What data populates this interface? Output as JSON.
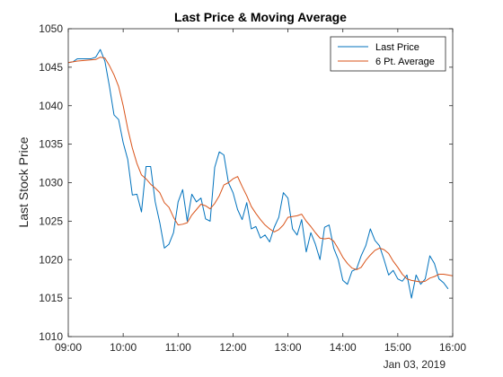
{
  "chart_data": {
    "type": "line",
    "title": "Last Price & Moving Average",
    "xlabel": "",
    "ylabel": "Last Stock Price",
    "date_label": "Jan 03, 2019",
    "x_ticks": [
      "09:00",
      "10:00",
      "11:00",
      "12:00",
      "13:00",
      "14:00",
      "15:00",
      "16:00"
    ],
    "y_ticks": [
      1010,
      1015,
      1020,
      1025,
      1030,
      1035,
      1040,
      1045,
      1050
    ],
    "xlim": [
      "09:00",
      "16:00"
    ],
    "ylim": [
      1010,
      1050
    ],
    "legend_position": "top-right",
    "grid": false,
    "series": [
      {
        "name": "Last Price",
        "color": "#0072BD",
        "points": [
          [
            "09:00",
            1045.6
          ],
          [
            "09:05",
            1045.7
          ],
          [
            "09:10",
            1046.1
          ],
          [
            "09:15",
            1046.1
          ],
          [
            "09:20",
            1046.1
          ],
          [
            "09:25",
            1046.1
          ],
          [
            "09:30",
            1046.3
          ],
          [
            "09:35",
            1047.3
          ],
          [
            "09:40",
            1045.8
          ],
          [
            "09:45",
            1042.5
          ],
          [
            "09:50",
            1038.8
          ],
          [
            "09:55",
            1038.2
          ],
          [
            "10:00",
            1035.2
          ],
          [
            "10:05",
            1033.0
          ],
          [
            "10:10",
            1028.4
          ],
          [
            "10:15",
            1028.5
          ],
          [
            "10:20",
            1026.2
          ],
          [
            "10:25",
            1032.1
          ],
          [
            "10:30",
            1032.1
          ],
          [
            "10:35",
            1027.5
          ],
          [
            "10:40",
            1024.8
          ],
          [
            "10:45",
            1021.5
          ],
          [
            "10:50",
            1022.0
          ],
          [
            "10:55",
            1023.5
          ],
          [
            "11:00",
            1027.5
          ],
          [
            "11:05",
            1029.1
          ],
          [
            "11:10",
            1025.0
          ],
          [
            "11:15",
            1028.5
          ],
          [
            "11:20",
            1027.5
          ],
          [
            "11:25",
            1028.0
          ],
          [
            "11:30",
            1025.3
          ],
          [
            "11:35",
            1025.0
          ],
          [
            "11:40",
            1032.0
          ],
          [
            "11:45",
            1034.0
          ],
          [
            "11:50",
            1033.6
          ],
          [
            "11:55",
            1030.0
          ],
          [
            "12:00",
            1028.7
          ],
          [
            "12:05",
            1026.5
          ],
          [
            "12:10",
            1025.2
          ],
          [
            "12:15",
            1027.4
          ],
          [
            "12:20",
            1024.0
          ],
          [
            "12:25",
            1024.3
          ],
          [
            "12:30",
            1022.8
          ],
          [
            "12:35",
            1023.2
          ],
          [
            "12:40",
            1022.3
          ],
          [
            "12:45",
            1024.2
          ],
          [
            "12:50",
            1025.5
          ],
          [
            "12:55",
            1028.7
          ],
          [
            "13:00",
            1028.0
          ],
          [
            "13:05",
            1024.0
          ],
          [
            "13:10",
            1023.2
          ],
          [
            "13:15",
            1025.2
          ],
          [
            "13:20",
            1021.0
          ],
          [
            "13:25",
            1023.5
          ],
          [
            "13:30",
            1022.0
          ],
          [
            "13:35",
            1020.0
          ],
          [
            "13:40",
            1024.2
          ],
          [
            "13:45",
            1024.5
          ],
          [
            "13:50",
            1021.5
          ],
          [
            "13:55",
            1020.0
          ],
          [
            "14:00",
            1017.3
          ],
          [
            "14:05",
            1016.8
          ],
          [
            "14:10",
            1018.5
          ],
          [
            "14:15",
            1018.8
          ],
          [
            "14:20",
            1020.5
          ],
          [
            "14:25",
            1021.8
          ],
          [
            "14:30",
            1024.0
          ],
          [
            "14:35",
            1022.5
          ],
          [
            "14:40",
            1021.8
          ],
          [
            "14:45",
            1020.0
          ],
          [
            "14:50",
            1018.0
          ],
          [
            "14:55",
            1018.6
          ],
          [
            "15:00",
            1017.5
          ],
          [
            "15:05",
            1017.2
          ],
          [
            "15:10",
            1018.0
          ],
          [
            "15:15",
            1015.0
          ],
          [
            "15:20",
            1018.0
          ],
          [
            "15:25",
            1016.8
          ],
          [
            "15:30",
            1017.5
          ],
          [
            "15:35",
            1020.5
          ],
          [
            "15:40",
            1019.5
          ],
          [
            "15:45",
            1017.5
          ],
          [
            "15:50",
            1017.0
          ],
          [
            "15:55",
            1016.2
          ]
        ]
      },
      {
        "name": "6 Pt. Average",
        "color": "#D95319",
        "points": [
          [
            "09:00",
            1045.6
          ],
          [
            "09:10",
            1045.8
          ],
          [
            "09:20",
            1045.9
          ],
          [
            "09:30",
            1046.0
          ],
          [
            "09:35",
            1046.3
          ],
          [
            "09:40",
            1046.2
          ],
          [
            "09:45",
            1045.2
          ],
          [
            "09:50",
            1044.0
          ],
          [
            "09:55",
            1042.5
          ],
          [
            "10:00",
            1040.0
          ],
          [
            "10:05",
            1037.0
          ],
          [
            "10:10",
            1034.5
          ],
          [
            "10:15",
            1032.5
          ],
          [
            "10:20",
            1031.0
          ],
          [
            "10:25",
            1030.5
          ],
          [
            "10:30",
            1029.8
          ],
          [
            "10:35",
            1029.3
          ],
          [
            "10:40",
            1028.7
          ],
          [
            "10:45",
            1027.4
          ],
          [
            "10:50",
            1026.8
          ],
          [
            "10:55",
            1025.5
          ],
          [
            "11:00",
            1024.5
          ],
          [
            "11:05",
            1024.6
          ],
          [
            "11:10",
            1024.8
          ],
          [
            "11:15",
            1025.8
          ],
          [
            "11:20",
            1026.5
          ],
          [
            "11:25",
            1027.2
          ],
          [
            "11:30",
            1027.0
          ],
          [
            "11:35",
            1026.6
          ],
          [
            "11:40",
            1027.3
          ],
          [
            "11:45",
            1028.3
          ],
          [
            "11:50",
            1029.7
          ],
          [
            "11:55",
            1030.0
          ],
          [
            "12:00",
            1030.5
          ],
          [
            "12:05",
            1030.8
          ],
          [
            "12:10",
            1029.5
          ],
          [
            "12:15",
            1028.3
          ],
          [
            "12:20",
            1026.9
          ],
          [
            "12:25",
            1026.0
          ],
          [
            "12:30",
            1025.2
          ],
          [
            "12:35",
            1024.5
          ],
          [
            "12:40",
            1024.0
          ],
          [
            "12:45",
            1023.6
          ],
          [
            "12:50",
            1023.9
          ],
          [
            "12:55",
            1024.5
          ],
          [
            "13:00",
            1025.5
          ],
          [
            "13:05",
            1025.6
          ],
          [
            "13:10",
            1025.7
          ],
          [
            "13:15",
            1025.9
          ],
          [
            "13:20",
            1025.0
          ],
          [
            "13:25",
            1024.3
          ],
          [
            "13:30",
            1023.5
          ],
          [
            "13:35",
            1022.8
          ],
          [
            "13:40",
            1022.7
          ],
          [
            "13:45",
            1022.8
          ],
          [
            "13:50",
            1022.4
          ],
          [
            "13:55",
            1021.4
          ],
          [
            "14:00",
            1020.3
          ],
          [
            "14:05",
            1019.5
          ],
          [
            "14:10",
            1018.9
          ],
          [
            "14:15",
            1018.7
          ],
          [
            "14:20",
            1019.0
          ],
          [
            "14:25",
            1019.9
          ],
          [
            "14:30",
            1020.6
          ],
          [
            "14:35",
            1021.2
          ],
          [
            "14:40",
            1021.5
          ],
          [
            "14:45",
            1021.3
          ],
          [
            "14:50",
            1020.8
          ],
          [
            "14:55",
            1019.8
          ],
          [
            "15:00",
            1019.0
          ],
          [
            "15:05",
            1018.1
          ],
          [
            "15:10",
            1017.5
          ],
          [
            "15:15",
            1017.3
          ],
          [
            "15:20",
            1017.2
          ],
          [
            "15:25",
            1017.1
          ],
          [
            "15:30",
            1017.2
          ],
          [
            "15:35",
            1017.6
          ],
          [
            "15:40",
            1017.8
          ],
          [
            "15:45",
            1018.1
          ],
          [
            "15:50",
            1018.1
          ],
          [
            "16:00",
            1017.9
          ]
        ]
      }
    ]
  }
}
